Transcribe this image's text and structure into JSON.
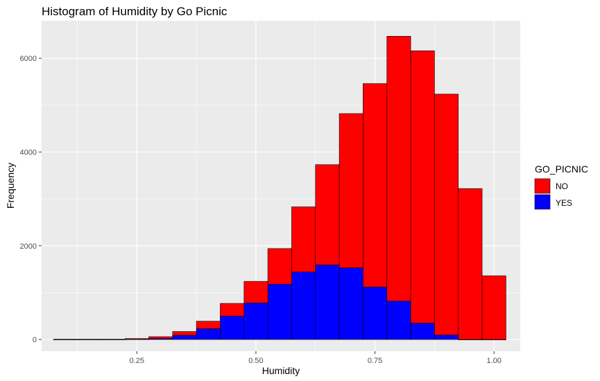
{
  "chart_data": {
    "type": "bar",
    "title": "Histogram of Humidity by Go Picnic",
    "xlabel": "Humidity",
    "ylabel": "Frequency",
    "xlim": [
      0.05,
      1.055
    ],
    "ylim": [
      -250,
      6800
    ],
    "x_ticks": [
      0.25,
      0.5,
      0.75,
      1.0
    ],
    "x_tick_labels": [
      "0.25",
      "0.50",
      "0.75",
      "1.00"
    ],
    "y_ticks": [
      0,
      2000,
      4000,
      6000
    ],
    "y_tick_labels": [
      "0",
      "2000",
      "4000",
      "6000"
    ],
    "grid": true,
    "stacked": true,
    "legend": {
      "title": "GO_PICNIC",
      "position": "right",
      "entries": [
        "NO",
        "YES"
      ]
    },
    "bins": [
      {
        "x0": 0.075,
        "x1": 0.125
      },
      {
        "x0": 0.125,
        "x1": 0.175
      },
      {
        "x0": 0.175,
        "x1": 0.225
      },
      {
        "x0": 0.225,
        "x1": 0.275
      },
      {
        "x0": 0.275,
        "x1": 0.325
      },
      {
        "x0": 0.325,
        "x1": 0.375
      },
      {
        "x0": 0.375,
        "x1": 0.425
      },
      {
        "x0": 0.425,
        "x1": 0.475
      },
      {
        "x0": 0.475,
        "x1": 0.525
      },
      {
        "x0": 0.525,
        "x1": 0.575
      },
      {
        "x0": 0.575,
        "x1": 0.625
      },
      {
        "x0": 0.625,
        "x1": 0.675
      },
      {
        "x0": 0.675,
        "x1": 0.725
      },
      {
        "x0": 0.725,
        "x1": 0.775
      },
      {
        "x0": 0.775,
        "x1": 0.825
      },
      {
        "x0": 0.825,
        "x1": 0.875
      },
      {
        "x0": 0.875,
        "x1": 0.925
      },
      {
        "x0": 0.925,
        "x1": 0.975
      },
      {
        "x0": 0.975,
        "x1": 1.025
      }
    ],
    "series": [
      {
        "name": "YES",
        "color": "#0000FF",
        "values": [
          0,
          0,
          0,
          5,
          20,
          90,
          230,
          500,
          780,
          1180,
          1440,
          1590,
          1530,
          1120,
          820,
          350,
          95,
          0,
          0
        ]
      },
      {
        "name": "NO",
        "color": "#FF0000",
        "values": [
          5,
          5,
          5,
          15,
          40,
          80,
          160,
          270,
          460,
          760,
          1390,
          2140,
          3290,
          4340,
          5650,
          5810,
          5140,
          3220,
          1360
        ]
      }
    ]
  }
}
